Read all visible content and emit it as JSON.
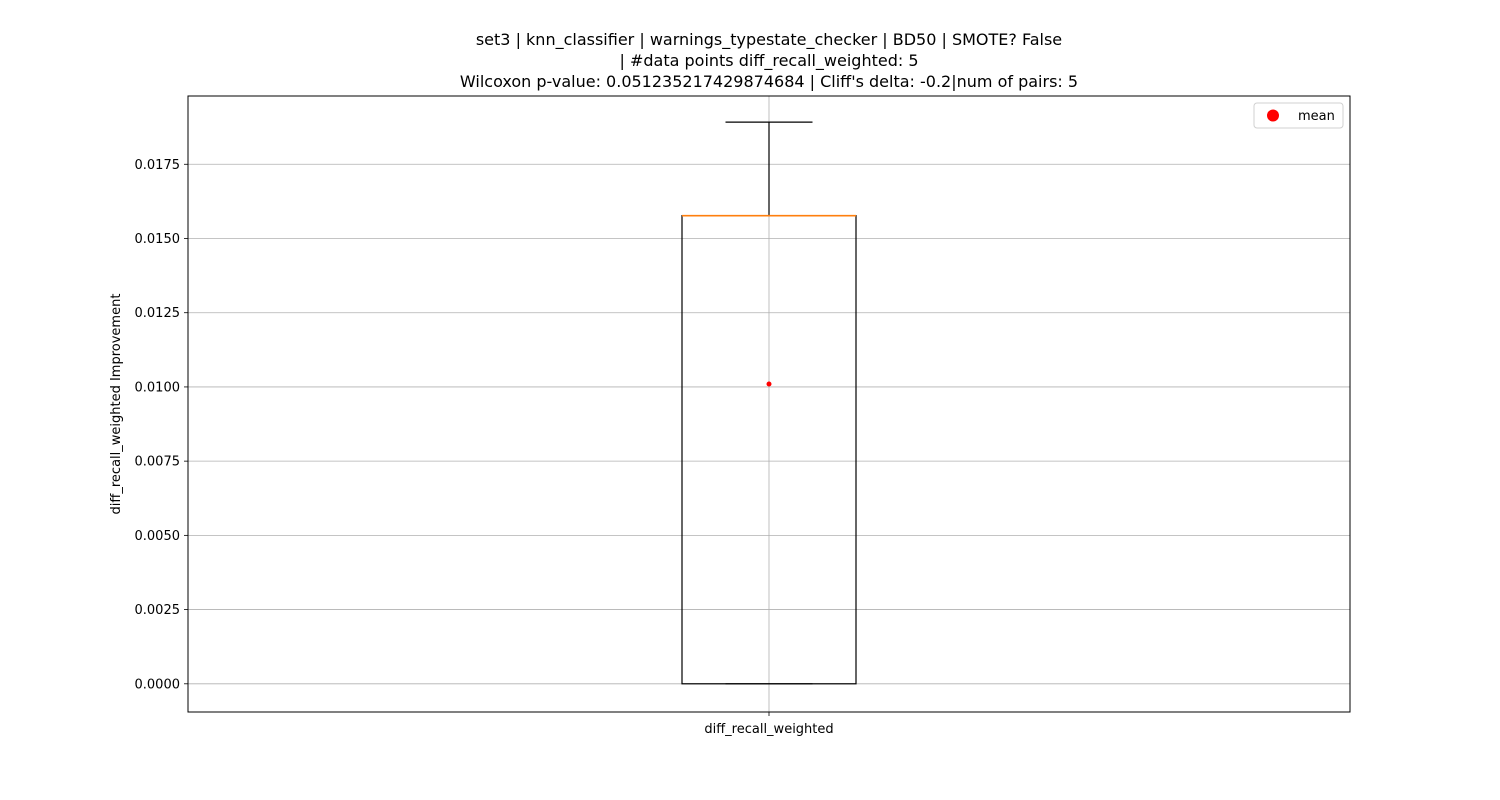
{
  "chart_data": {
    "type": "box",
    "title_lines": [
      "set3 | knn_classifier | warnings_typestate_checker | BD50 | SMOTE? False",
      "| #data points diff_recall_weighted: 5",
      "Wilcoxon p-value: 0.051235217429874684 | Cliff's delta: -0.2|num of pairs: 5"
    ],
    "xlabel": "",
    "ylabel": "diff_recall_weighted Improvement",
    "categories": [
      "diff_recall_weighted"
    ],
    "ylim": [
      -0.00095,
      0.0198
    ],
    "yticks": [
      0.0,
      0.0025,
      0.005,
      0.0075,
      0.01,
      0.0125,
      0.015,
      0.0175
    ],
    "ytick_labels": [
      "0.0000",
      "0.0025",
      "0.0050",
      "0.0075",
      "0.0100",
      "0.0125",
      "0.0150",
      "0.0175"
    ],
    "boxes": [
      {
        "category": "diff_recall_weighted",
        "whisker_low": 0.0,
        "q1": 0.0,
        "median": 0.01577,
        "q3": 0.01577,
        "whisker_high": 0.01892,
        "mean": 0.0101
      }
    ],
    "grid": true,
    "legend": {
      "position": "top-right",
      "entries": [
        "mean"
      ]
    },
    "colors": {
      "median": "#ff7f0e",
      "mean": "#ff0000",
      "box": "#000000",
      "grid": "#b0b0b0"
    }
  }
}
